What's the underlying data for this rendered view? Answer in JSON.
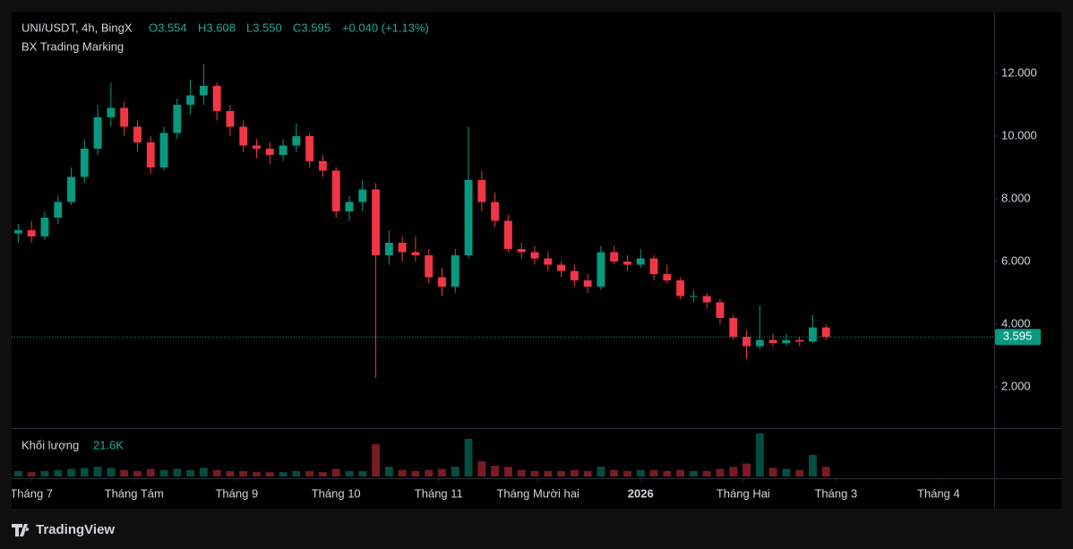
{
  "chart_data": {
    "type": "candlestick",
    "header": {
      "symbol": "UNI/USDT, 4h, BingX",
      "open": "O3.554",
      "high": "H3.608",
      "low": "L3.550",
      "close": "C3.595",
      "change": "+0.040 (+1.13%)"
    },
    "indicator": "BX Trading Marking",
    "volume_label": "Khối lượng",
    "volume_value": "21.6K",
    "brand": "TradingView",
    "up_color": "#089981",
    "down_color": "#f23645",
    "open": [
      6.9,
      7.0,
      6.8,
      7.4,
      7.9,
      8.7,
      9.6,
      10.6,
      10.9,
      10.3,
      9.8,
      9.0,
      10.1,
      11.0,
      11.3,
      11.6,
      10.8,
      10.3,
      9.7,
      9.6,
      9.4,
      9.7,
      10.0,
      9.2,
      8.9,
      7.6,
      7.9,
      8.3,
      6.2,
      6.6,
      6.3,
      6.2,
      5.5,
      5.2,
      6.2,
      8.6,
      7.9,
      7.3,
      6.4,
      6.3,
      6.1,
      5.9,
      5.7,
      5.4,
      5.2,
      6.3,
      6.0,
      5.9,
      6.1,
      5.6,
      5.4,
      4.9,
      4.9,
      4.7,
      4.2,
      3.6,
      3.3,
      3.5,
      3.4,
      3.5,
      3.45,
      3.9
    ],
    "high": [
      7.2,
      7.3,
      7.6,
      8.1,
      9.0,
      9.9,
      11.0,
      11.7,
      11.1,
      10.5,
      10.0,
      10.3,
      11.2,
      11.8,
      12.3,
      11.7,
      11.0,
      10.5,
      9.9,
      9.8,
      9.9,
      10.4,
      10.1,
      9.4,
      9.0,
      8.1,
      8.6,
      8.5,
      7.0,
      6.8,
      6.8,
      6.4,
      5.8,
      6.4,
      10.3,
      8.9,
      8.2,
      7.5,
      6.6,
      6.5,
      6.3,
      6.0,
      5.9,
      5.6,
      6.5,
      6.5,
      6.2,
      6.4,
      6.2,
      5.9,
      5.5,
      5.1,
      5.0,
      4.8,
      4.3,
      3.8,
      4.6,
      3.7,
      3.7,
      3.6,
      4.3,
      4.0
    ],
    "low": [
      6.6,
      6.6,
      6.7,
      7.2,
      7.8,
      8.5,
      9.4,
      10.3,
      10.0,
      9.5,
      8.8,
      8.9,
      9.9,
      10.7,
      11.0,
      10.5,
      10.0,
      9.5,
      9.3,
      9.1,
      9.2,
      9.5,
      9.0,
      8.7,
      7.4,
      7.3,
      7.6,
      2.3,
      5.9,
      6.0,
      6.0,
      5.3,
      4.9,
      5.0,
      6.1,
      7.6,
      7.1,
      6.3,
      6.1,
      5.9,
      5.7,
      5.5,
      5.2,
      5.0,
      5.1,
      5.9,
      5.7,
      5.8,
      5.4,
      5.3,
      4.8,
      4.7,
      4.5,
      4.0,
      3.5,
      2.9,
      3.2,
      3.3,
      3.3,
      3.3,
      3.4,
      3.5
    ],
    "close": [
      7.0,
      6.8,
      7.4,
      7.9,
      8.7,
      9.6,
      10.6,
      10.9,
      10.3,
      9.8,
      9.0,
      10.1,
      11.0,
      11.3,
      11.6,
      10.8,
      10.3,
      9.7,
      9.6,
      9.4,
      9.7,
      10.0,
      9.2,
      8.9,
      7.6,
      7.9,
      8.3,
      6.2,
      6.6,
      6.3,
      6.2,
      5.5,
      5.2,
      6.2,
      8.6,
      7.9,
      7.3,
      6.4,
      6.3,
      6.1,
      5.9,
      5.7,
      5.4,
      5.2,
      6.3,
      6.0,
      5.9,
      6.1,
      5.6,
      5.4,
      4.9,
      4.9,
      4.7,
      4.2,
      3.6,
      3.3,
      3.5,
      3.4,
      3.5,
      3.45,
      3.9,
      3.595
    ],
    "volume": [
      5,
      4,
      5,
      6,
      7,
      8,
      9,
      8,
      6,
      5,
      7,
      6,
      7,
      6,
      8,
      6,
      5,
      5,
      4,
      4,
      4,
      5,
      5,
      4,
      7,
      5,
      5,
      30,
      9,
      6,
      5,
      6,
      7,
      9,
      35,
      14,
      10,
      9,
      6,
      5,
      5,
      5,
      6,
      5,
      9,
      6,
      5,
      6,
      6,
      5,
      6,
      5,
      5,
      7,
      9,
      12,
      40,
      8,
      7,
      6,
      20,
      9
    ],
    "xlim": [
      0,
      74.2
    ],
    "xticks": [
      {
        "value": 1.5,
        "label": "Tháng 7"
      },
      {
        "value": 9.25,
        "label": "Tháng Tám"
      },
      {
        "value": 17,
        "label": "Tháng 9"
      },
      {
        "value": 24.5,
        "label": "Tháng 10"
      },
      {
        "value": 32.25,
        "label": "Tháng 11"
      },
      {
        "value": 39.75,
        "label": "Tháng Mười hai"
      },
      {
        "value": 47.5,
        "label": "2026"
      },
      {
        "value": 55.25,
        "label": "Tháng Hai"
      },
      {
        "value": 62.25,
        "label": "Tháng 3"
      },
      {
        "value": 70,
        "label": "Tháng 4"
      }
    ],
    "ylim": [
      0.69,
      13.94
    ],
    "yticks": [
      {
        "value": 2,
        "label": "2.000"
      },
      {
        "value": 4,
        "label": "4.000"
      },
      {
        "value": 6,
        "label": "6.000"
      },
      {
        "value": 8,
        "label": "8.000"
      },
      {
        "value": 10,
        "label": "10.000"
      },
      {
        "value": 12,
        "label": "12.000"
      }
    ],
    "last_price": {
      "value": 3.595,
      "label": "3.595"
    }
  }
}
